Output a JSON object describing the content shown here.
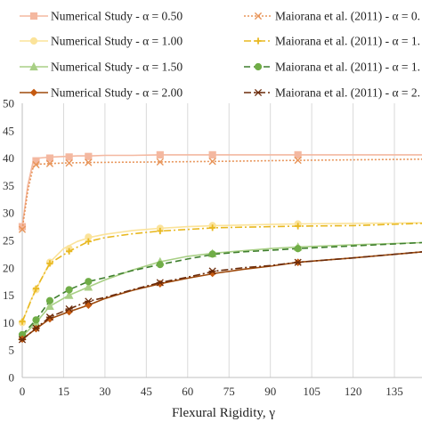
{
  "chart_data": {
    "type": "line",
    "xlabel": "Flexural Rigidity, γ",
    "ylabel": "",
    "xlim": [
      0,
      145
    ],
    "ylim": [
      0,
      50
    ],
    "xticks": [
      "0",
      "15",
      "30",
      "45",
      "60",
      "75",
      "90",
      "105",
      "120",
      "135"
    ],
    "yticks": [
      "0",
      "5",
      "10",
      "15",
      "20",
      "25",
      "30",
      "35",
      "40",
      "45",
      "50"
    ],
    "grid": "vertical",
    "legend": "top",
    "series": [
      {
        "name": "Numerical Study - α = 0.50",
        "color": "#f4b8a0",
        "style": "solid",
        "marker": "square",
        "x": [
          0,
          2,
          4,
          6,
          8,
          10,
          15,
          20,
          25,
          30,
          40,
          50,
          60,
          70,
          80,
          90,
          100,
          110,
          120,
          130,
          145
        ],
        "y": [
          27.5,
          35,
          39.5,
          40,
          40.1,
          40.2,
          40.3,
          40.4,
          40.4,
          40.5,
          40.5,
          40.6,
          40.6,
          40.6,
          40.6,
          40.6,
          40.6,
          40.6,
          40.6,
          40.6,
          40.6
        ],
        "marker_x": [
          0,
          5,
          10,
          17,
          24,
          50,
          69,
          100
        ],
        "marker_y": [
          27.5,
          39.5,
          40,
          40.2,
          40.3,
          40.6,
          40.6,
          40.6
        ]
      },
      {
        "name": "Maiorana et al. (2011) - α = 0.",
        "color": "#e8955a",
        "style": "dotted",
        "marker": "x",
        "x": [
          0,
          2,
          4,
          6,
          10,
          15,
          25,
          50,
          70,
          100,
          145
        ],
        "y": [
          27,
          34,
          38.5,
          38.9,
          39,
          39.1,
          39.2,
          39.3,
          39.4,
          39.6,
          39.8
        ],
        "marker_x": [
          0,
          5,
          10,
          17,
          24,
          50,
          69,
          100
        ],
        "marker_y": [
          27,
          38.8,
          39,
          39.1,
          39.2,
          39.3,
          39.4,
          39.6
        ]
      },
      {
        "name": "Numerical Study - α = 1.00",
        "color": "#fbe39a",
        "style": "solid",
        "marker": "circle",
        "x": [
          0,
          3,
          5,
          10,
          15,
          20,
          25,
          30,
          40,
          50,
          60,
          70,
          80,
          90,
          100,
          120,
          145
        ],
        "y": [
          10,
          14,
          16,
          21,
          23.5,
          24.8,
          25.6,
          26.1,
          26.8,
          27.2,
          27.5,
          27.7,
          27.8,
          27.9,
          28,
          28.1,
          28.2
        ],
        "marker_x": [
          0,
          5,
          10,
          17,
          24,
          50,
          69,
          100
        ],
        "marker_y": [
          10,
          16,
          21,
          23.5,
          25.6,
          27.2,
          27.7,
          28
        ]
      },
      {
        "name": "Maiorana et al. (2011) - α = 1.",
        "color": "#e8b820",
        "style": "dashdot",
        "marker": "plus",
        "x": [
          0,
          5,
          10,
          17,
          24,
          30,
          40,
          50,
          60,
          70,
          80,
          90,
          100,
          120,
          145
        ],
        "y": [
          10.2,
          16.2,
          20.8,
          23,
          24.8,
          25.5,
          26.2,
          26.7,
          27,
          27.3,
          27.4,
          27.5,
          27.6,
          27.7,
          28.1
        ],
        "marker_x": [
          0,
          5,
          10,
          17,
          24,
          50,
          69,
          100
        ],
        "marker_y": [
          10.2,
          16.2,
          20.8,
          23,
          24.8,
          26.7,
          27.3,
          27.6
        ]
      },
      {
        "name": "Numerical Study - α = 1.50",
        "color": "#a8cf85",
        "style": "solid",
        "marker": "triangle",
        "x": [
          0,
          5,
          10,
          17,
          24,
          30,
          40,
          50,
          60,
          70,
          80,
          90,
          100,
          120,
          145
        ],
        "y": [
          7.5,
          10,
          13,
          15,
          16.5,
          17.8,
          19.6,
          21.1,
          22.1,
          22.7,
          23.1,
          23.5,
          23.8,
          24.2,
          24.6
        ],
        "marker_x": [
          0,
          5,
          10,
          17,
          24,
          50,
          69,
          100
        ],
        "marker_y": [
          7.5,
          10,
          13,
          15,
          16.5,
          21.1,
          22.6,
          23.8
        ]
      },
      {
        "name": "Maiorana et al. (2011) - α = 1.",
        "color": "#3f7f2e",
        "style": "dashed",
        "marker": "circle-filled",
        "marker_color": "#70ad47",
        "x": [
          0,
          5,
          10,
          17,
          24,
          30,
          40,
          50,
          60,
          70,
          80,
          90,
          100,
          120,
          145
        ],
        "y": [
          7.8,
          10.5,
          14,
          16,
          17.5,
          18.2,
          19.5,
          20.6,
          21.6,
          22.5,
          22.9,
          23.2,
          23.5,
          24,
          24.6
        ],
        "marker_x": [
          0,
          5,
          10,
          17,
          24,
          50,
          69,
          100
        ],
        "marker_y": [
          7.8,
          10.5,
          14,
          16,
          17.5,
          20.6,
          22.5,
          23.5
        ]
      },
      {
        "name": "Numerical Study - α = 2.00",
        "color": "#9e4a0c",
        "style": "solid",
        "marker": "diamond",
        "marker_color": "#c55a11",
        "x": [
          0,
          5,
          10,
          17,
          24,
          30,
          40,
          50,
          60,
          70,
          80,
          90,
          100,
          120,
          145
        ],
        "y": [
          7,
          8.9,
          10.7,
          12,
          13.2,
          14.4,
          15.9,
          17.1,
          18.1,
          19,
          19.7,
          20.3,
          21,
          21.8,
          22.9
        ],
        "marker_x": [
          0,
          5,
          10,
          17,
          24,
          50,
          69,
          100
        ],
        "marker_y": [
          7,
          8.9,
          10.7,
          12,
          13.2,
          17.1,
          19,
          21
        ]
      },
      {
        "name": "Maiorana et al. (2011) - α = 2.",
        "color": "#6b2b0a",
        "style": "dashdot",
        "marker": "star",
        "x": [
          0,
          5,
          10,
          17,
          24,
          30,
          40,
          50,
          60,
          70,
          80,
          90,
          100,
          120,
          145
        ],
        "y": [
          6.9,
          9,
          11,
          12.5,
          13.9,
          14.6,
          16,
          17.3,
          18.3,
          19.4,
          20,
          20.4,
          21,
          21.8,
          22.9
        ],
        "marker_x": [
          0,
          5,
          10,
          17,
          24,
          50,
          69,
          100
        ],
        "marker_y": [
          6.9,
          9,
          11,
          12.5,
          13.9,
          17.3,
          19.4,
          21
        ]
      }
    ]
  }
}
